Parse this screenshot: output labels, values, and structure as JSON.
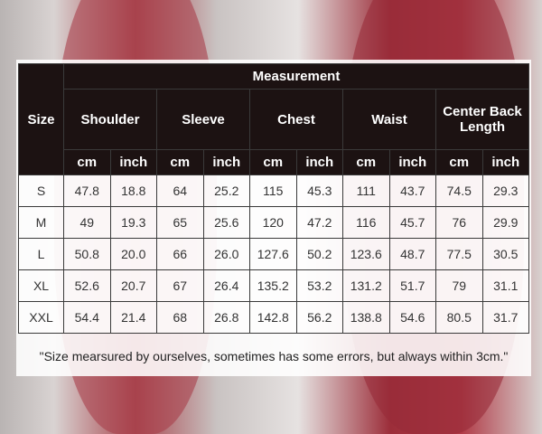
{
  "table": {
    "size_label": "Size",
    "measurement_label": "Measurement",
    "groups": [
      "Shoulder",
      "Sleeve",
      "Chest",
      "Waist",
      "Center Back Length"
    ],
    "units": [
      "cm",
      "inch"
    ],
    "rows": [
      [
        "S",
        "47.8",
        "18.8",
        "64",
        "25.2",
        "115",
        "45.3",
        "111",
        "43.7",
        "74.5",
        "29.3"
      ],
      [
        "M",
        "49",
        "19.3",
        "65",
        "25.6",
        "120",
        "47.2",
        "116",
        "45.7",
        "76",
        "29.9"
      ],
      [
        "L",
        "50.8",
        "20.0",
        "66",
        "26.0",
        "127.6",
        "50.2",
        "123.6",
        "48.7",
        "77.5",
        "30.5"
      ],
      [
        "XL",
        "52.6",
        "20.7",
        "67",
        "26.4",
        "135.2",
        "53.2",
        "131.2",
        "51.7",
        "79",
        "31.1"
      ],
      [
        "XXL",
        "54.4",
        "21.4",
        "68",
        "26.8",
        "142.8",
        "56.2",
        "138.8",
        "54.6",
        "80.5",
        "31.7"
      ]
    ]
  },
  "note": "\"Size mearsured by ourselves, sometimes has some errors, but always within 3cm.\"",
  "colors": {
    "header_bg": "#1c1212",
    "header_text": "#ffffff",
    "jacket": "#a3303d"
  }
}
